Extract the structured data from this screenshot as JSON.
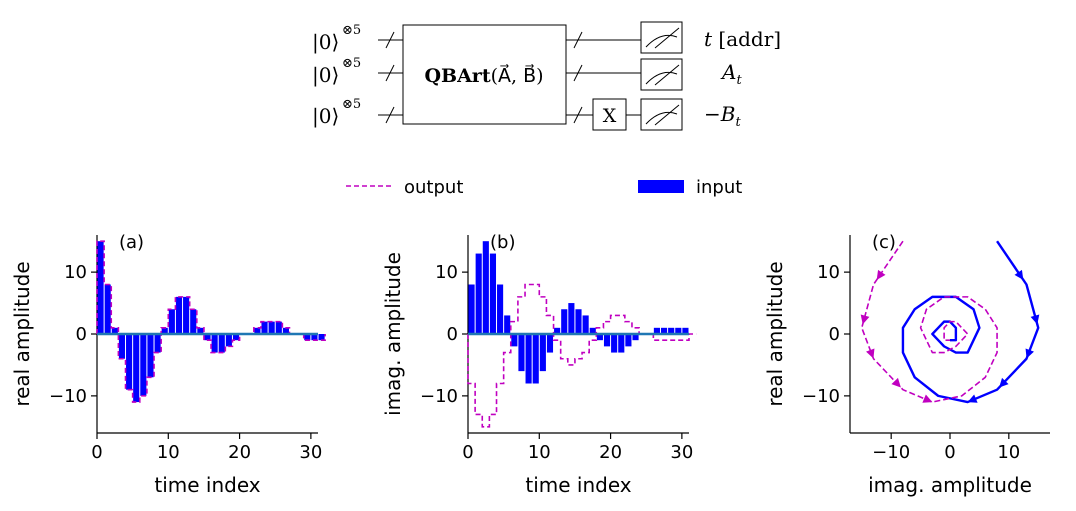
{
  "circuit": {
    "kets": [
      "|0⟩",
      "|0⟩",
      "|0⟩"
    ],
    "ket_exponent": "⊗5",
    "gate_bold": "QBArt",
    "gate_args": "(A⃗, B⃗)",
    "x_gate": "X",
    "outputs": [
      {
        "main": "t",
        "sub": "",
        "suffix": " [addr]"
      },
      {
        "main": "A",
        "sub": "t",
        "suffix": ""
      },
      {
        "main": "−B",
        "sub": "t",
        "suffix": ""
      }
    ]
  },
  "legend": {
    "output_label": "output",
    "input_label": "input"
  },
  "colors": {
    "output": "#c000c0",
    "input": "#0000ff",
    "zero_line": "#1f77b4"
  },
  "chart_data": [
    {
      "panel_label": "(a)",
      "type": "bar",
      "xlabel": "time index",
      "ylabel": "real  amplitude",
      "xlim": [
        0,
        31
      ],
      "ylim": [
        -16,
        16
      ],
      "xticks": [
        0,
        10,
        20,
        30
      ],
      "yticks": [
        -10,
        0,
        10
      ],
      "series": [
        {
          "name": "input",
          "values": [
            15,
            8,
            1,
            -4,
            -9,
            -11,
            -10,
            -7,
            -3,
            1,
            4,
            6,
            6,
            4,
            1,
            -1,
            -3,
            -3,
            -2,
            -1,
            0,
            0,
            1,
            2,
            2,
            2,
            1,
            0,
            0,
            -1,
            -1,
            -1
          ]
        },
        {
          "name": "output",
          "values": [
            15,
            8,
            1,
            -4,
            -9,
            -11,
            -10,
            -7,
            -3,
            1,
            4,
            6,
            6,
            4,
            1,
            -1,
            -3,
            -3,
            -2,
            -1,
            0,
            0,
            1,
            2,
            2,
            2,
            1,
            0,
            0,
            -1,
            -1,
            -1
          ]
        }
      ]
    },
    {
      "panel_label": "(b)",
      "type": "bar",
      "xlabel": "time index",
      "ylabel": "imag.  amplitude",
      "xlim": [
        0,
        31
      ],
      "ylim": [
        -16,
        16
      ],
      "xticks": [
        0,
        10,
        20,
        30
      ],
      "yticks": [
        -10,
        0,
        10
      ],
      "series": [
        {
          "name": "input",
          "values": [
            8,
            13,
            15,
            13,
            8,
            3,
            -2,
            -6,
            -8,
            -8,
            -6,
            -3,
            1,
            4,
            5,
            4,
            3,
            1,
            -1,
            -2,
            -3,
            -3,
            -2,
            -1,
            0,
            0,
            1,
            1,
            1,
            1,
            1,
            0
          ]
        },
        {
          "name": "output",
          "values": [
            -8,
            -13,
            -15,
            -13,
            -8,
            -3,
            2,
            6,
            8,
            8,
            6,
            3,
            -1,
            -4,
            -5,
            -4,
            -3,
            -1,
            1,
            2,
            3,
            3,
            2,
            1,
            0,
            0,
            -1,
            -1,
            -1,
            -1,
            -1,
            0
          ]
        }
      ]
    },
    {
      "panel_label": "(c)",
      "type": "line",
      "xlabel": "imag.  amplitude",
      "ylabel": "real  amplitude",
      "xlim": [
        -17,
        17
      ],
      "ylim": [
        -16,
        16
      ],
      "xticks": [
        -10,
        0,
        10
      ],
      "yticks": [
        -10,
        0,
        10
      ],
      "series": [
        {
          "name": "input",
          "x": [
            8,
            13,
            15,
            13,
            8,
            3,
            -2,
            -6,
            -8,
            -8,
            -6,
            -3,
            1,
            4,
            5,
            4,
            3,
            1,
            -1,
            -2,
            -3,
            -3,
            -2,
            -1,
            0,
            0,
            1,
            1,
            1,
            1,
            1,
            0
          ],
          "y": [
            15,
            8,
            1,
            -4,
            -9,
            -11,
            -10,
            -7,
            -3,
            1,
            4,
            6,
            6,
            4,
            1,
            -1,
            -3,
            -3,
            -2,
            -1,
            0,
            0,
            1,
            2,
            2,
            2,
            1,
            0,
            0,
            -1,
            -1,
            -1
          ]
        },
        {
          "name": "output",
          "x": [
            -8,
            -13,
            -15,
            -13,
            -8,
            -3,
            2,
            6,
            8,
            8,
            6,
            3,
            -1,
            -4,
            -5,
            -4,
            -3,
            -1,
            1,
            2,
            3,
            3,
            2,
            1,
            0,
            0,
            -1,
            -1,
            -1,
            -1,
            -1,
            0
          ],
          "y": [
            15,
            8,
            1,
            -4,
            -9,
            -11,
            -10,
            -7,
            -3,
            1,
            4,
            6,
            6,
            4,
            1,
            -1,
            -3,
            -3,
            -2,
            -1,
            0,
            0,
            1,
            2,
            2,
            2,
            1,
            0,
            0,
            -1,
            -1,
            -1
          ]
        }
      ]
    }
  ]
}
